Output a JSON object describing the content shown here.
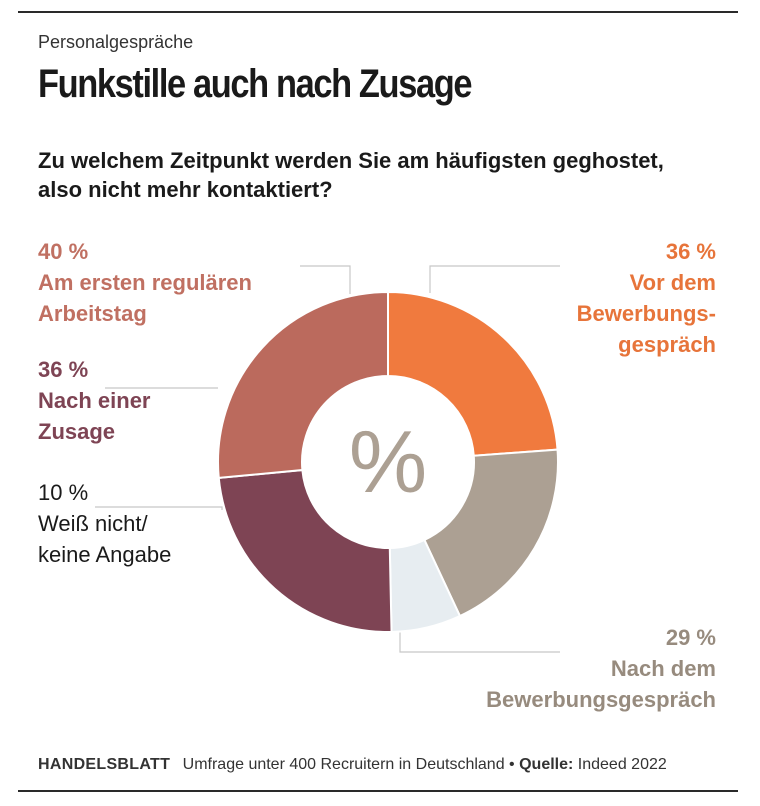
{
  "header": {
    "kicker": "Personalgespräche",
    "title": "Funkstille auch nach Zusage",
    "question": "Zu welchem Zeitpunkt werden Sie am häufigsten geghostet, also nicht mehr kontaktiert?"
  },
  "center_symbol": "%",
  "chart_data": {
    "type": "pie",
    "donut": true,
    "title": "Zu welchem Zeitpunkt werden Sie am häufigsten geghostet, also nicht mehr kontaktiert?",
    "slices": [
      {
        "label": "Vor dem Bewerbungsgespräch",
        "value_label": "36 %",
        "value": 36,
        "color": "#f07a3e",
        "label_color": "#e7743a"
      },
      {
        "label": "Nach dem Bewerbungsgespräch",
        "value_label": "29 %",
        "value": 29,
        "color": "#aca093",
        "label_color": "#978b7e"
      },
      {
        "label": "Weiß nicht/ keine Angabe",
        "value_label": "10 %",
        "value": 10,
        "color": "#e7edf1",
        "label_color": "#1a1a1a"
      },
      {
        "label": "Nach einer Zusage",
        "value_label": "36 %",
        "value": 36,
        "color": "#7e4454",
        "label_color": "#7e4454"
      },
      {
        "label": "Am ersten regulären Arbeitstag",
        "value_label": "40 %",
        "value": 40,
        "color": "#bb6a5d",
        "label_color": "#c07062"
      }
    ]
  },
  "labels": {
    "vor_pct": "36 %",
    "vor_name": "Vor dem\nBewerbungs-\ngespräch",
    "nach_pct": "29 %",
    "nach_name": "Nach dem\nBewerbungsgespräch",
    "weiss_pct": "10 %",
    "weiss_name": "Weiß nicht/\nkeine Angabe",
    "zusage_pct": "36 %",
    "zusage_name": "Nach einer\nZusage",
    "erster_pct": "40 %",
    "erster_name": "Am ersten regulären\nArbeitstag"
  },
  "footer": {
    "brand": "HANDELSBLATT",
    "text": "Umfrage unter 400 Recruitern in Deutschland •",
    "source_label": "Quelle:",
    "source": "Indeed 2022"
  }
}
